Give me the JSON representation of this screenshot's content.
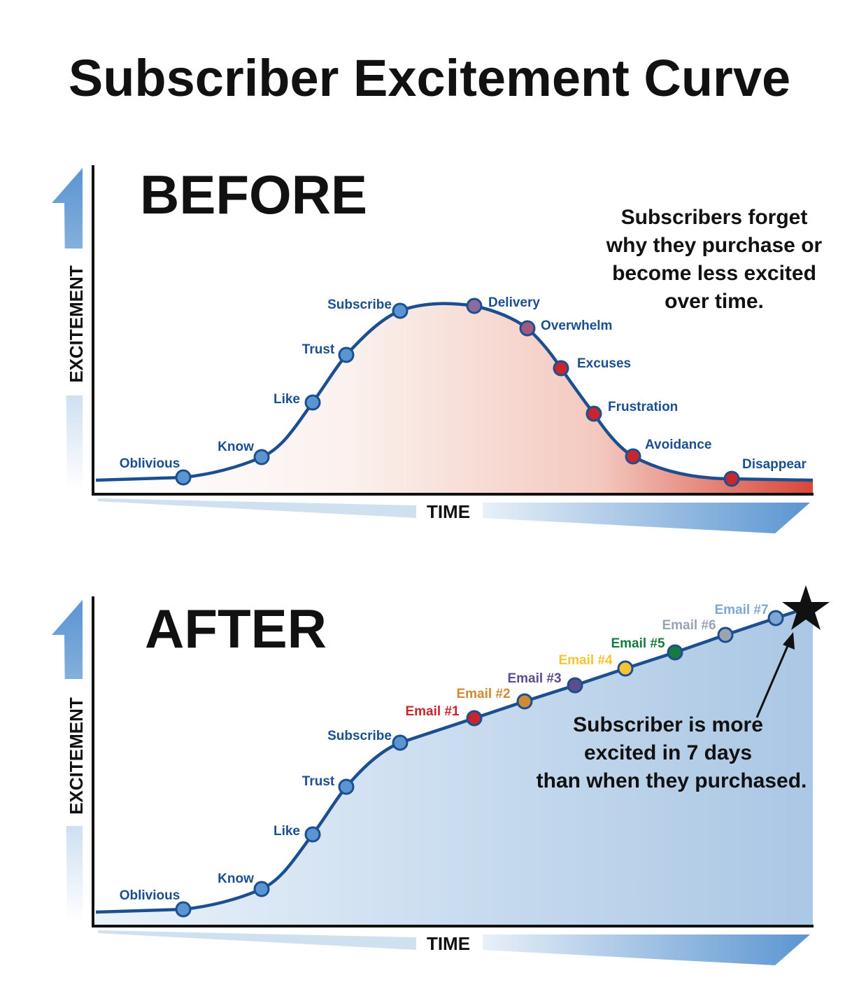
{
  "title": "Subscriber Excitement Curve",
  "colors": {
    "curve": "#1b4f8f",
    "blue_fill_light": "#e4eef8",
    "blue_fill_dark": "#b3cce6",
    "red_fill_light": "#ffffff",
    "red_fill_dark": "#d9463a",
    "axis": "#111111",
    "arrow_light": "#dde9f5",
    "arrow_dark": "#5b95d1",
    "label": "#1b4f8f"
  },
  "before": {
    "heading": "BEFORE",
    "y_axis_label": "EXCITEMENT",
    "x_axis_label": "TIME",
    "note_lines": [
      "Subscribers forget",
      "why they purchase or",
      "become less excited",
      "over time."
    ],
    "points": [
      {
        "label": "Oblivious",
        "color": "#5b95d1",
        "label_color": "#1b4f8f"
      },
      {
        "label": "Know",
        "color": "#5b95d1",
        "label_color": "#1b4f8f"
      },
      {
        "label": "Like",
        "color": "#5b95d1",
        "label_color": "#1b4f8f"
      },
      {
        "label": "Trust",
        "color": "#5b95d1",
        "label_color": "#1b4f8f"
      },
      {
        "label": "Subscribe",
        "color": "#5b95d1",
        "label_color": "#1b4f8f"
      },
      {
        "label": "Delivery",
        "color": "#8a6b9b",
        "label_color": "#1b4f8f"
      },
      {
        "label": "Overwhelm",
        "color": "#a05a80",
        "label_color": "#1b4f8f"
      },
      {
        "label": "Excuses",
        "color": "#c8262e",
        "label_color": "#1b4f8f"
      },
      {
        "label": "Frustration",
        "color": "#c8262e",
        "label_color": "#1b4f8f"
      },
      {
        "label": "Avoidance",
        "color": "#c8262e",
        "label_color": "#1b4f8f"
      },
      {
        "label": "Disappear",
        "color": "#c8262e",
        "label_color": "#1b4f8f"
      }
    ]
  },
  "after": {
    "heading": "AFTER",
    "y_axis_label": "EXCITEMENT",
    "x_axis_label": "TIME",
    "note_lines": [
      "Subscriber is more",
      "excited in 7 days",
      "than when they purchased."
    ],
    "star_icon": "star-icon",
    "points": [
      {
        "label": "Oblivious",
        "color": "#5b95d1",
        "label_color": "#1b4f8f"
      },
      {
        "label": "Know",
        "color": "#5b95d1",
        "label_color": "#1b4f8f"
      },
      {
        "label": "Like",
        "color": "#5b95d1",
        "label_color": "#1b4f8f"
      },
      {
        "label": "Trust",
        "color": "#5b95d1",
        "label_color": "#1b4f8f"
      },
      {
        "label": "Subscribe",
        "color": "#5b95d1",
        "label_color": "#1b4f8f"
      },
      {
        "label": "Email #1",
        "color": "#c8262e",
        "label_color": "#c8262e"
      },
      {
        "label": "Email #2",
        "color": "#d08a35",
        "label_color": "#d08a35"
      },
      {
        "label": "Email #3",
        "color": "#5d4d8a",
        "label_color": "#5d4d8a"
      },
      {
        "label": "Email #4",
        "color": "#f4c531",
        "label_color": "#f4c531"
      },
      {
        "label": "Email #5",
        "color": "#187a3f",
        "label_color": "#187a3f"
      },
      {
        "label": "Email #6",
        "color": "#9aa3b3",
        "label_color": "#9aa3b3"
      },
      {
        "label": "Email #7",
        "color": "#7fa7d6",
        "label_color": "#7fa7d6"
      }
    ]
  }
}
